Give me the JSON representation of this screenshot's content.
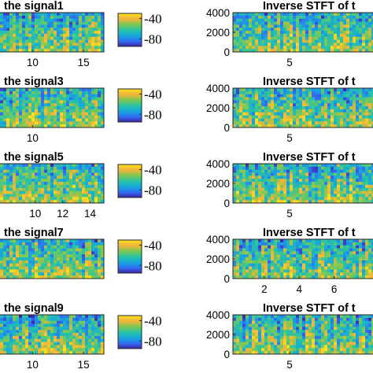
{
  "chart_data": [
    {
      "type": "heatmap",
      "title": "the signal1",
      "x_ticks": [
        "10",
        "15"
      ],
      "x_tick_values": [
        10,
        15
      ],
      "xlim": [
        6.5,
        17
      ],
      "colorbar": {
        "ticks": [
          "-40",
          "-80"
        ],
        "tick_values": [
          -40,
          -80
        ],
        "range": [
          -95,
          -30
        ]
      },
      "seed": 11
    },
    {
      "type": "heatmap",
      "title": "Inverse STFT of t",
      "y_ticks": [
        "4000",
        "2000",
        "0"
      ],
      "y_tick_values": [
        4000,
        2000,
        0
      ],
      "ylim": [
        0,
        4000
      ],
      "x_ticks": [
        "5"
      ],
      "x_tick_values": [
        5
      ],
      "xlim": [
        0.5,
        12
      ],
      "seed": 12
    },
    {
      "type": "heatmap",
      "title": "the signal3",
      "x_ticks": [
        "10"
      ],
      "x_tick_values": [
        10
      ],
      "xlim": [
        6.5,
        17
      ],
      "colorbar": {
        "ticks": [
          "-40",
          "-80"
        ],
        "tick_values": [
          -40,
          -80
        ],
        "range": [
          -95,
          -30
        ]
      },
      "seed": 31
    },
    {
      "type": "heatmap",
      "title": "Inverse STFT of t",
      "y_ticks": [
        "4000",
        "2000",
        "0"
      ],
      "y_tick_values": [
        4000,
        2000,
        0
      ],
      "ylim": [
        0,
        4000
      ],
      "x_ticks": [
        "5"
      ],
      "x_tick_values": [
        5
      ],
      "xlim": [
        0.5,
        12
      ],
      "seed": 32
    },
    {
      "type": "heatmap",
      "title": "the signal5",
      "x_ticks": [
        "10",
        "12",
        "14"
      ],
      "x_tick_values": [
        10,
        12,
        14
      ],
      "xlim": [
        7.2,
        15
      ],
      "colorbar": {
        "ticks": [
          "-40",
          "-80"
        ],
        "tick_values": [
          -40,
          -80
        ],
        "range": [
          -95,
          -30
        ]
      },
      "seed": 51
    },
    {
      "type": "heatmap",
      "title": "Inverse STFT of t",
      "y_ticks": [
        "4000",
        "2000",
        "0"
      ],
      "y_tick_values": [
        4000,
        2000,
        0
      ],
      "ylim": [
        0,
        4000
      ],
      "x_ticks": [
        "5"
      ],
      "x_tick_values": [
        5
      ],
      "xlim": [
        0.5,
        12
      ],
      "seed": 52
    },
    {
      "type": "heatmap",
      "title": "the signal7",
      "x_ticks": [],
      "x_tick_values": [],
      "xlim": [
        6.5,
        17
      ],
      "colorbar": {
        "ticks": [
          "-40",
          "-80"
        ],
        "tick_values": [
          -40,
          -80
        ],
        "range": [
          -95,
          -30
        ]
      },
      "seed": 71
    },
    {
      "type": "heatmap",
      "title": "Inverse STFT of t",
      "y_ticks": [
        "4000",
        "2000",
        "0"
      ],
      "y_tick_values": [
        4000,
        2000,
        0
      ],
      "ylim": [
        0,
        4000
      ],
      "x_ticks": [
        "2",
        "4",
        "6"
      ],
      "x_tick_values": [
        2,
        4,
        6
      ],
      "xlim": [
        0.2,
        8.5
      ],
      "seed": 72
    },
    {
      "type": "heatmap",
      "title": "the signal9",
      "x_ticks": [
        "10",
        "15"
      ],
      "x_tick_values": [
        10,
        15
      ],
      "xlim": [
        6.5,
        17
      ],
      "colorbar": {
        "ticks": [
          "-40",
          "-80"
        ],
        "tick_values": [
          -40,
          -80
        ],
        "range": [
          -95,
          -30
        ]
      },
      "seed": 91
    },
    {
      "type": "heatmap",
      "title": "Inverse STFT of t",
      "y_ticks": [
        "4000",
        "2000",
        "0"
      ],
      "y_tick_values": [
        4000,
        2000,
        0
      ],
      "ylim": [
        0,
        4000
      ],
      "x_ticks": [
        "5"
      ],
      "x_tick_values": [
        5
      ],
      "xlim": [
        0.5,
        12
      ],
      "seed": 92
    }
  ],
  "colormap": [
    "#3e26a8",
    "#2f70f6",
    "#17a9d9",
    "#2bc4a2",
    "#7ec952",
    "#f5b33a",
    "#f9e11e"
  ]
}
